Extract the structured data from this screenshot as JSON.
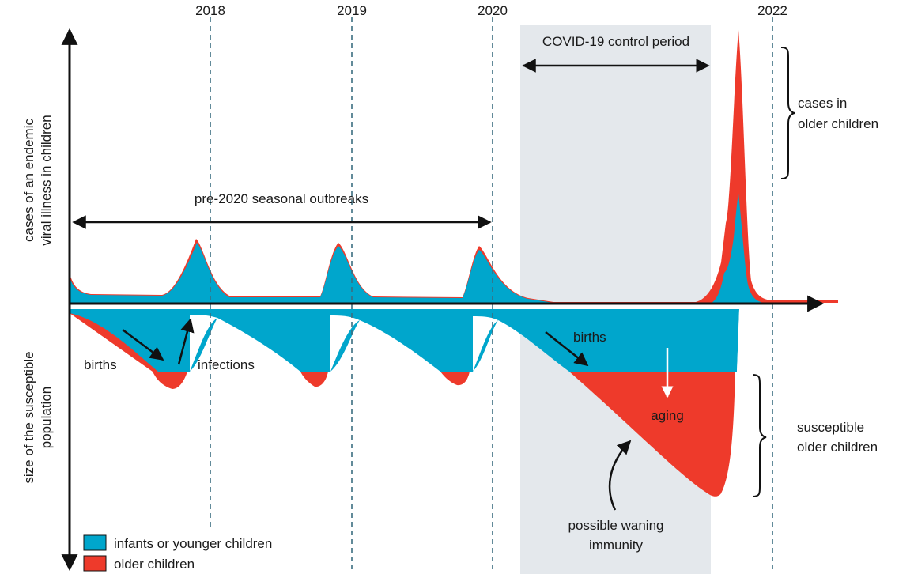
{
  "years": [
    "2018",
    "2019",
    "2020",
    "2022"
  ],
  "y_axis": {
    "upper_label_line1": "cases of an endemic",
    "upper_label_line2": "viral illness in children",
    "lower_label_line1": "size of the susceptible",
    "lower_label_line2": "population"
  },
  "annotations": {
    "covid_period": "COVID-19 control period",
    "pre2020": "pre-2020 seasonal outbreaks",
    "cases_older_line1": "cases in",
    "cases_older_line2": "older children",
    "births_left": "births",
    "infections": "infections",
    "births_right": "births",
    "aging": "aging",
    "susceptible_line1": "susceptible",
    "susceptible_line2": "older children",
    "waning_line1": "possible waning",
    "waning_line2": "immunity"
  },
  "legend": [
    {
      "label": "infants or younger children",
      "color": "#00a6cc"
    },
    {
      "label": "older children",
      "color": "#ee3a2b"
    }
  ],
  "colors": {
    "blue": "#00a6cc",
    "red": "#ee3a2b",
    "shade": "#e4e8ec",
    "axis": "#111111",
    "dashed": "#3b6e80"
  }
}
